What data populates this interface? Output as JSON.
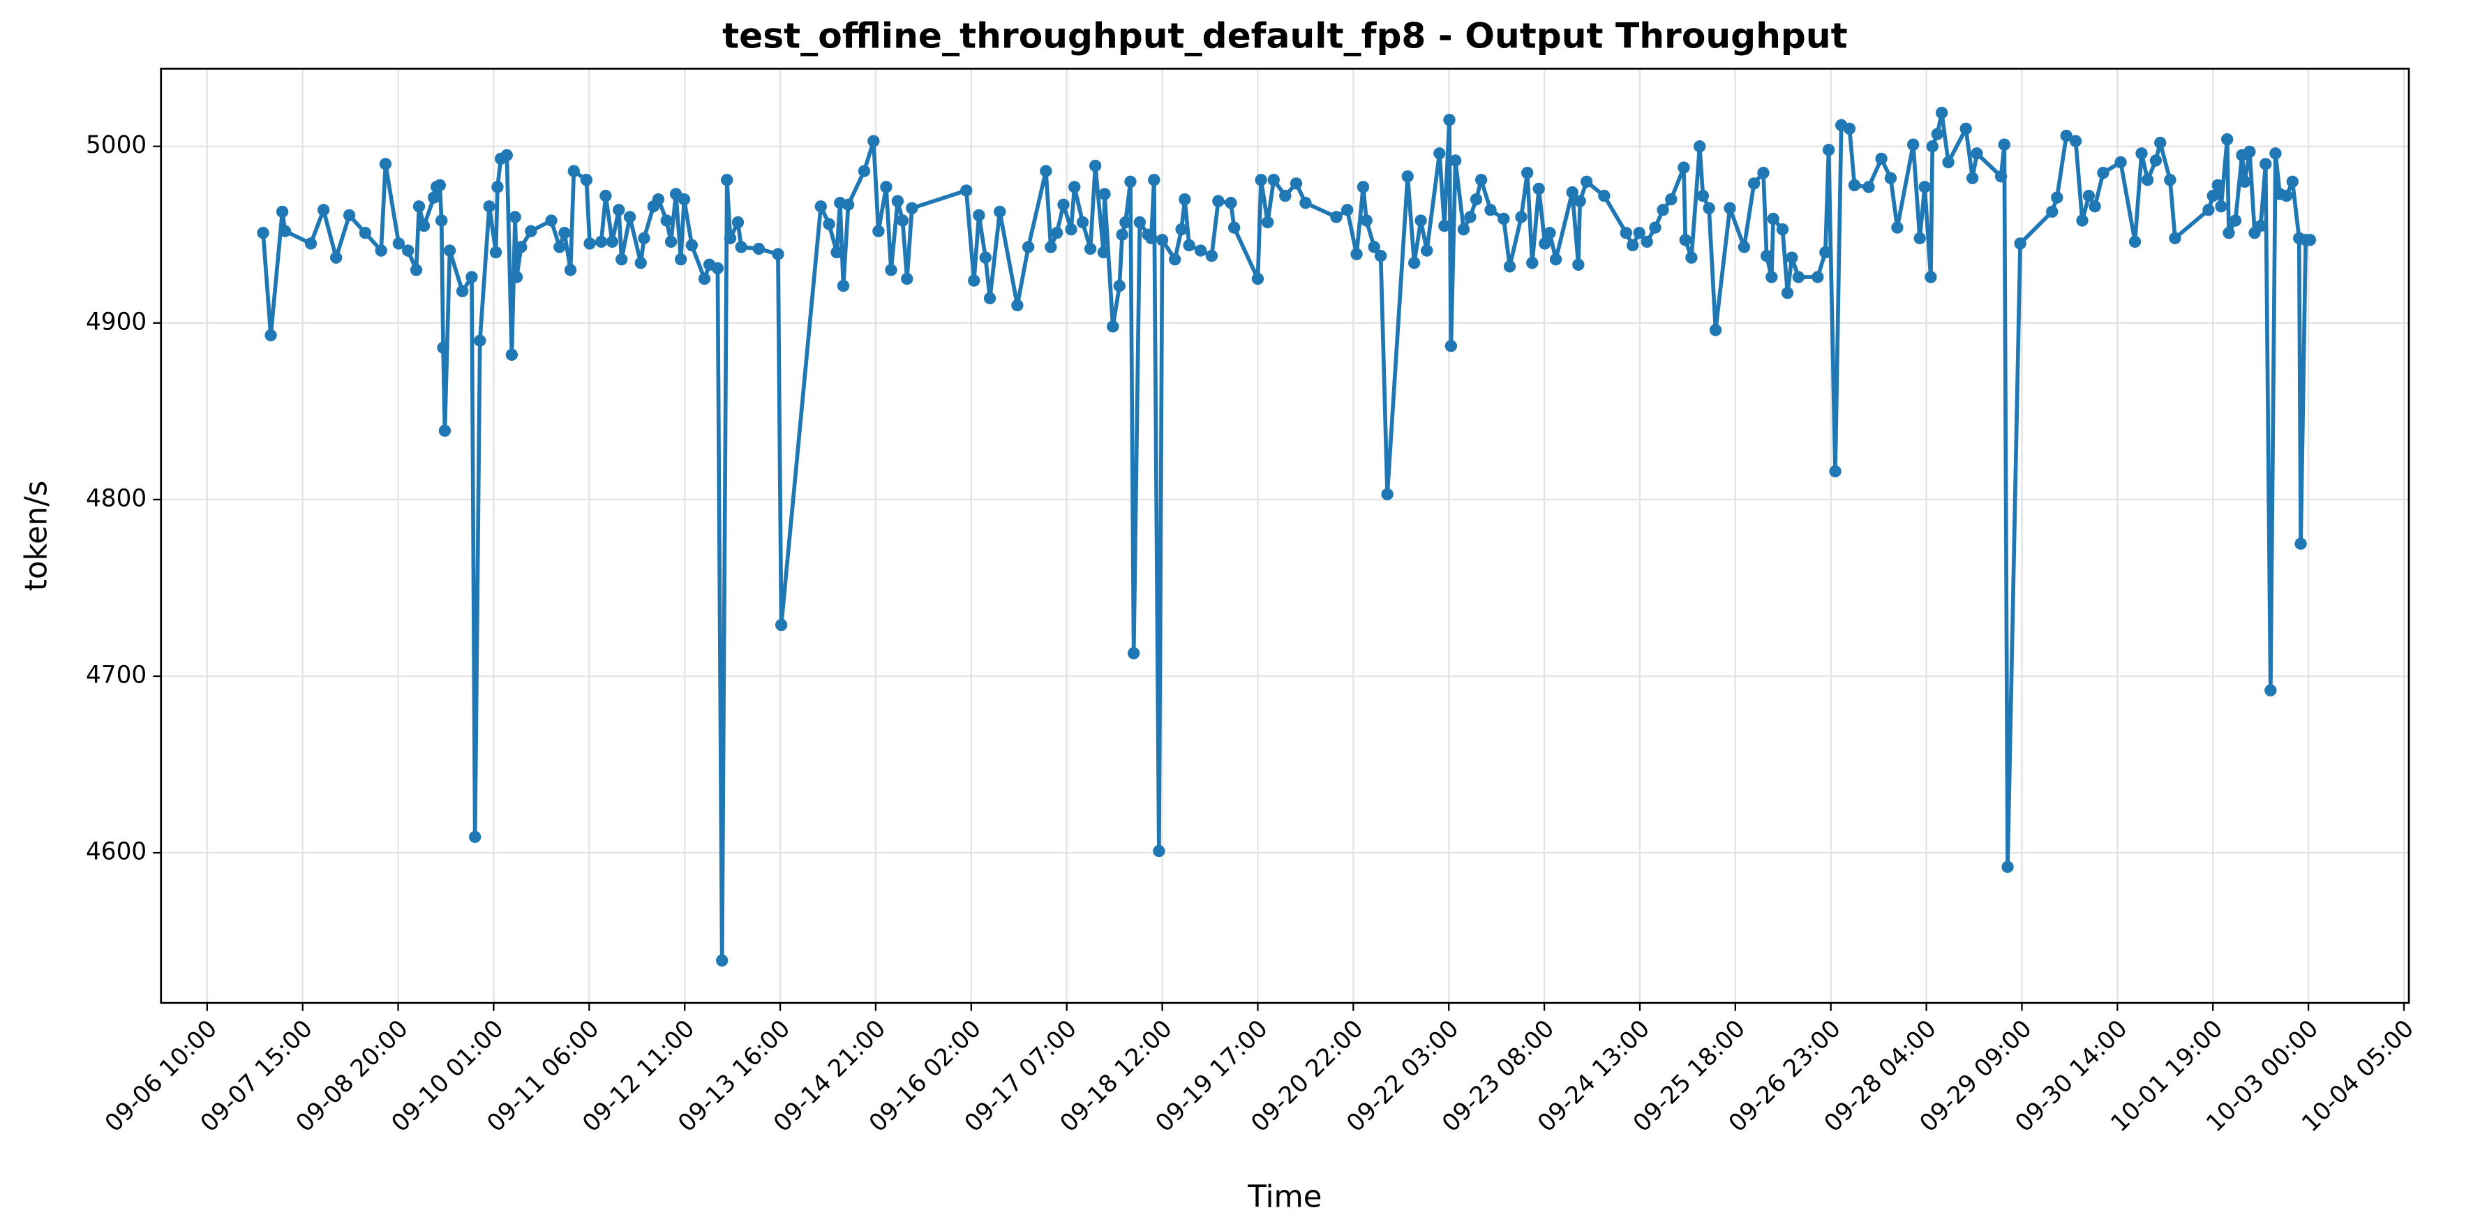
{
  "chart_data": {
    "type": "line",
    "title": "test_offline_throughput_default_fp8 - Output Throughput",
    "x_label": "Time",
    "y_label": "token/s",
    "color": "#1f77b4",
    "grid": true,
    "markers": true,
    "xlim": [
      "09-05 20:00",
      "10-04 06:30"
    ],
    "xticks": [
      "09-06 10:00",
      "09-07 15:00",
      "09-08 20:00",
      "09-10 01:00",
      "09-11 06:00",
      "09-12 11:00",
      "09-13 16:00",
      "09-14 21:00",
      "09-16 02:00",
      "09-17 07:00",
      "09-18 12:00",
      "09-19 17:00",
      "09-20 22:00",
      "09-22 03:00",
      "09-23 08:00",
      "09-24 13:00",
      "09-25 18:00",
      "09-26 23:00",
      "09-28 04:00",
      "09-29 09:00",
      "09-30 14:00",
      "10-01 19:00",
      "10-03 00:00",
      "10-04 05:00"
    ],
    "ylim": [
      4515,
      5044
    ],
    "yticks": [
      4600,
      4700,
      4800,
      4900,
      5000
    ],
    "x": [
      "09-07 03:00",
      "09-07 05:20",
      "09-07 08:50",
      "09-07 09:40",
      "09-07 17:30",
      "09-07 21:20",
      "09-08 01:10",
      "09-08 05:10",
      "09-08 10:00",
      "09-08 14:50",
      "09-08 16:10",
      "09-08 20:10",
      "09-08 23:00",
      "09-09 01:30",
      "09-09 02:20",
      "09-09 03:50",
      "09-09 06:50",
      "09-09 07:40",
      "09-09 08:40",
      "09-09 09:10",
      "09-09 09:40",
      "09-09 10:10",
      "09-09 11:40",
      "09-09 15:30",
      "09-09 18:20",
      "09-09 19:20",
      "09-09 20:50",
      "09-09 23:40",
      "09-10 01:40",
      "09-10 02:10",
      "09-10 03:10",
      "09-10 05:00",
      "09-10 06:30",
      "09-10 07:30",
      "09-10 08:00",
      "09-10 09:20",
      "09-10 12:20",
      "09-10 18:30",
      "09-10 21:00",
      "09-10 22:30",
      "09-11 00:20",
      "09-11 01:20",
      "09-11 05:10",
      "09-11 06:10",
      "09-11 09:40",
      "09-11 11:00",
      "09-11 13:00",
      "09-11 15:00",
      "09-11 15:50",
      "09-11 18:20",
      "09-11 21:40",
      "09-11 22:40",
      "09-12 01:30",
      "09-12 03:00",
      "09-12 05:30",
      "09-12 06:50",
      "09-12 08:20",
      "09-12 09:50",
      "09-12 10:50",
      "09-12 13:10",
      "09-12 17:00",
      "09-12 18:30",
      "09-12 21:00",
      "09-12 22:20",
      "09-12 23:50",
      "09-13 00:50",
      "09-13 03:10",
      "09-13 04:10",
      "09-13 09:30",
      "09-13 15:20",
      "09-13 16:20",
      "09-14 04:20",
      "09-14 06:50",
      "09-14 09:10",
      "09-14 10:10",
      "09-14 11:10",
      "09-14 12:40",
      "09-14 17:30",
      "09-14 20:20",
      "09-14 21:50",
      "09-15 00:10",
      "09-15 01:40",
      "09-15 03:40",
      "09-15 05:10",
      "09-15 06:30",
      "09-15 08:00",
      "09-16 00:30",
      "09-16 02:50",
      "09-16 04:20",
      "09-16 06:20",
      "09-16 07:40",
      "09-16 10:40",
      "09-16 16:00",
      "09-16 19:20",
      "09-17 00:40",
      "09-17 02:10",
      "09-17 04:00",
      "09-17 06:00",
      "09-17 08:20",
      "09-17 09:20",
      "09-17 11:50",
      "09-17 14:10",
      "09-17 15:40",
      "09-17 18:10",
      "09-17 18:30",
      "09-17 21:00",
      "09-17 23:00",
      "09-17 23:50",
      "09-18 00:50",
      "09-18 02:20",
      "09-18 03:20",
      "09-18 05:10",
      "09-18 07:40",
      "09-18 08:40",
      "09-18 09:30",
      "09-18 11:00",
      "09-18 12:00",
      "09-18 15:50",
      "09-18 17:50",
      "09-18 18:50",
      "09-18 20:10",
      "09-18 23:40",
      "09-19 03:00",
      "09-19 05:00",
      "09-19 08:50",
      "09-19 09:50",
      "09-19 17:00",
      "09-19 18:00",
      "09-19 20:00",
      "09-19 21:50",
      "09-20 01:20",
      "09-20 04:40",
      "09-20 07:30",
      "09-20 16:50",
      "09-20 20:10",
      "09-20 23:00",
      "09-21 01:00",
      "09-21 02:00",
      "09-21 04:20",
      "09-21 06:20",
      "09-21 08:20",
      "09-21 14:30",
      "09-21 16:30",
      "09-21 18:30",
      "09-21 20:20",
      "09-22 00:10",
      "09-22 01:40",
      "09-22 03:10",
      "09-22 03:40",
      "09-22 05:00",
      "09-22 07:30",
      "09-22 09:30",
      "09-22 11:20",
      "09-22 12:50",
      "09-22 15:40",
      "09-22 19:40",
      "09-22 21:30",
      "09-23 01:00",
      "09-23 02:50",
      "09-23 04:20",
      "09-23 06:20",
      "09-23 08:10",
      "09-23 09:40",
      "09-23 11:30",
      "09-23 16:30",
      "09-23 18:20",
      "09-23 18:50",
      "09-23 20:50",
      "09-24 02:10",
      "09-24 08:50",
      "09-24 10:50",
      "09-24 12:50",
      "09-24 15:10",
      "09-24 17:40",
      "09-24 20:00",
      "09-24 22:30",
      "09-25 02:20",
      "09-25 02:50",
      "09-25 04:40",
      "09-25 07:10",
      "09-25 08:10",
      "09-25 10:00",
      "09-25 12:00",
      "09-25 16:20",
      "09-25 20:40",
      "09-25 23:40",
      "09-26 02:30",
      "09-26 03:30",
      "09-26 05:00",
      "09-26 05:30",
      "09-26 08:20",
      "09-26 09:50",
      "09-26 11:10",
      "09-26 13:10",
      "09-26 19:00",
      "09-26 21:20",
      "09-26 22:20",
      "09-27 00:20",
      "09-27 02:10",
      "09-27 04:40",
      "09-27 06:10",
      "09-27 10:30",
      "09-27 14:20",
      "09-27 17:10",
      "09-27 19:10",
      "09-28 00:00",
      "09-28 02:00",
      "09-28 03:30",
      "09-28 05:20",
      "09-28 05:50",
      "09-28 07:20",
      "09-28 08:40",
      "09-28 10:40",
      "09-28 16:00",
      "09-28 18:00",
      "09-28 19:20",
      "09-29 02:40",
      "09-29 03:40",
      "09-29 04:40",
      "09-29 08:30",
      "09-29 18:10",
      "09-29 19:40",
      "09-29 22:30",
      "09-30 01:20",
      "09-30 03:20",
      "09-30 05:20",
      "09-30 07:10",
      "09-30 09:40",
      "09-30 15:00",
      "09-30 19:20",
      "09-30 21:20",
      "09-30 23:10",
      "10-01 01:40",
      "10-01 03:00",
      "10-01 06:00",
      "10-01 07:30",
      "10-01 17:40",
      "10-01 19:00",
      "10-01 20:30",
      "10-01 21:30",
      "10-01 23:20",
      "10-01 23:50",
      "10-02 01:50",
      "10-02 03:50",
      "10-02 04:40",
      "10-02 06:10",
      "10-02 07:40",
      "10-02 09:30",
      "10-02 11:00",
      "10-02 12:30",
      "10-02 14:00",
      "10-02 15:20",
      "10-02 17:20",
      "10-02 19:10",
      "10-02 21:10",
      "10-02 21:40",
      "10-02 23:10",
      "10-03 00:30"
    ],
    "values": [
      4951,
      4893,
      4963,
      4952,
      4945,
      4964,
      4937,
      4961,
      4951,
      4941,
      4990,
      4945,
      4941,
      4930,
      4966,
      4955,
      4971,
      4977,
      4978,
      4958,
      4886,
      4839,
      4941,
      4918,
      4926,
      4609,
      4890,
      4966,
      4940,
      4977,
      4993,
      4995,
      4882,
      4960,
      4926,
      4943,
      4952,
      4958,
      4943,
      4951,
      4930,
      4986,
      4981,
      4945,
      4946,
      4972,
      4946,
      4964,
      4936,
      4960,
      4934,
      4948,
      4966,
      4970,
      4958,
      4946,
      4973,
      4936,
      4970,
      4944,
      4925,
      4933,
      4931,
      4539,
      4981,
      4948,
      4957,
      4943,
      4942,
      4939,
      4729,
      4966,
      4956,
      4940,
      4968,
      4921,
      4967,
      4986,
      5003,
      4952,
      4977,
      4930,
      4969,
      4958,
      4925,
      4965,
      4975,
      4924,
      4961,
      4937,
      4914,
      4963,
      4910,
      4943,
      4986,
      4943,
      4951,
      4967,
      4953,
      4977,
      4957,
      4942,
      4989,
      4940,
      4973,
      4898,
      4921,
      4950,
      4957,
      4980,
      4713,
      4957,
      4950,
      4948,
      4981,
      4601,
      4947,
      4936,
      4953,
      4970,
      4944,
      4941,
      4938,
      4969,
      4968,
      4954,
      4925,
      4981,
      4957,
      4981,
      4972,
      4979,
      4968,
      4960,
      4964,
      4939,
      4977,
      4958,
      4943,
      4938,
      4803,
      4983,
      4934,
      4958,
      4941,
      4996,
      4955,
      5015,
      4887,
      4992,
      4953,
      4960,
      4970,
      4981,
      4964,
      4959,
      4932,
      4960,
      4985,
      4934,
      4976,
      4945,
      4951,
      4936,
      4974,
      4933,
      4969,
      4980,
      4972,
      4951,
      4944,
      4951,
      4946,
      4954,
      4964,
      4970,
      4988,
      4947,
      4937,
      5000,
      4972,
      4965,
      4896,
      4965,
      4943,
      4979,
      4985,
      4938,
      4926,
      4959,
      4953,
      4917,
      4937,
      4926,
      4926,
      4940,
      4998,
      4816,
      5012,
      5010,
      4978,
      4977,
      4993,
      4982,
      4954,
      5001,
      4948,
      4977,
      4926,
      5000,
      5007,
      5019,
      4991,
      5010,
      4982,
      4996,
      4983,
      5001,
      4592,
      4945,
      4963,
      4971,
      5006,
      5003,
      4958,
      4972,
      4966,
      4985,
      4991,
      4946,
      4996,
      4981,
      4992,
      5002,
      4981,
      4948,
      4964,
      4972,
      4978,
      4966,
      5004,
      4951,
      4958,
      4995,
      4980,
      4997,
      4951,
      4955,
      4990,
      4692,
      4996,
      4973,
      4972,
      4980,
      4948,
      4775,
      4947,
      4947
    ]
  }
}
